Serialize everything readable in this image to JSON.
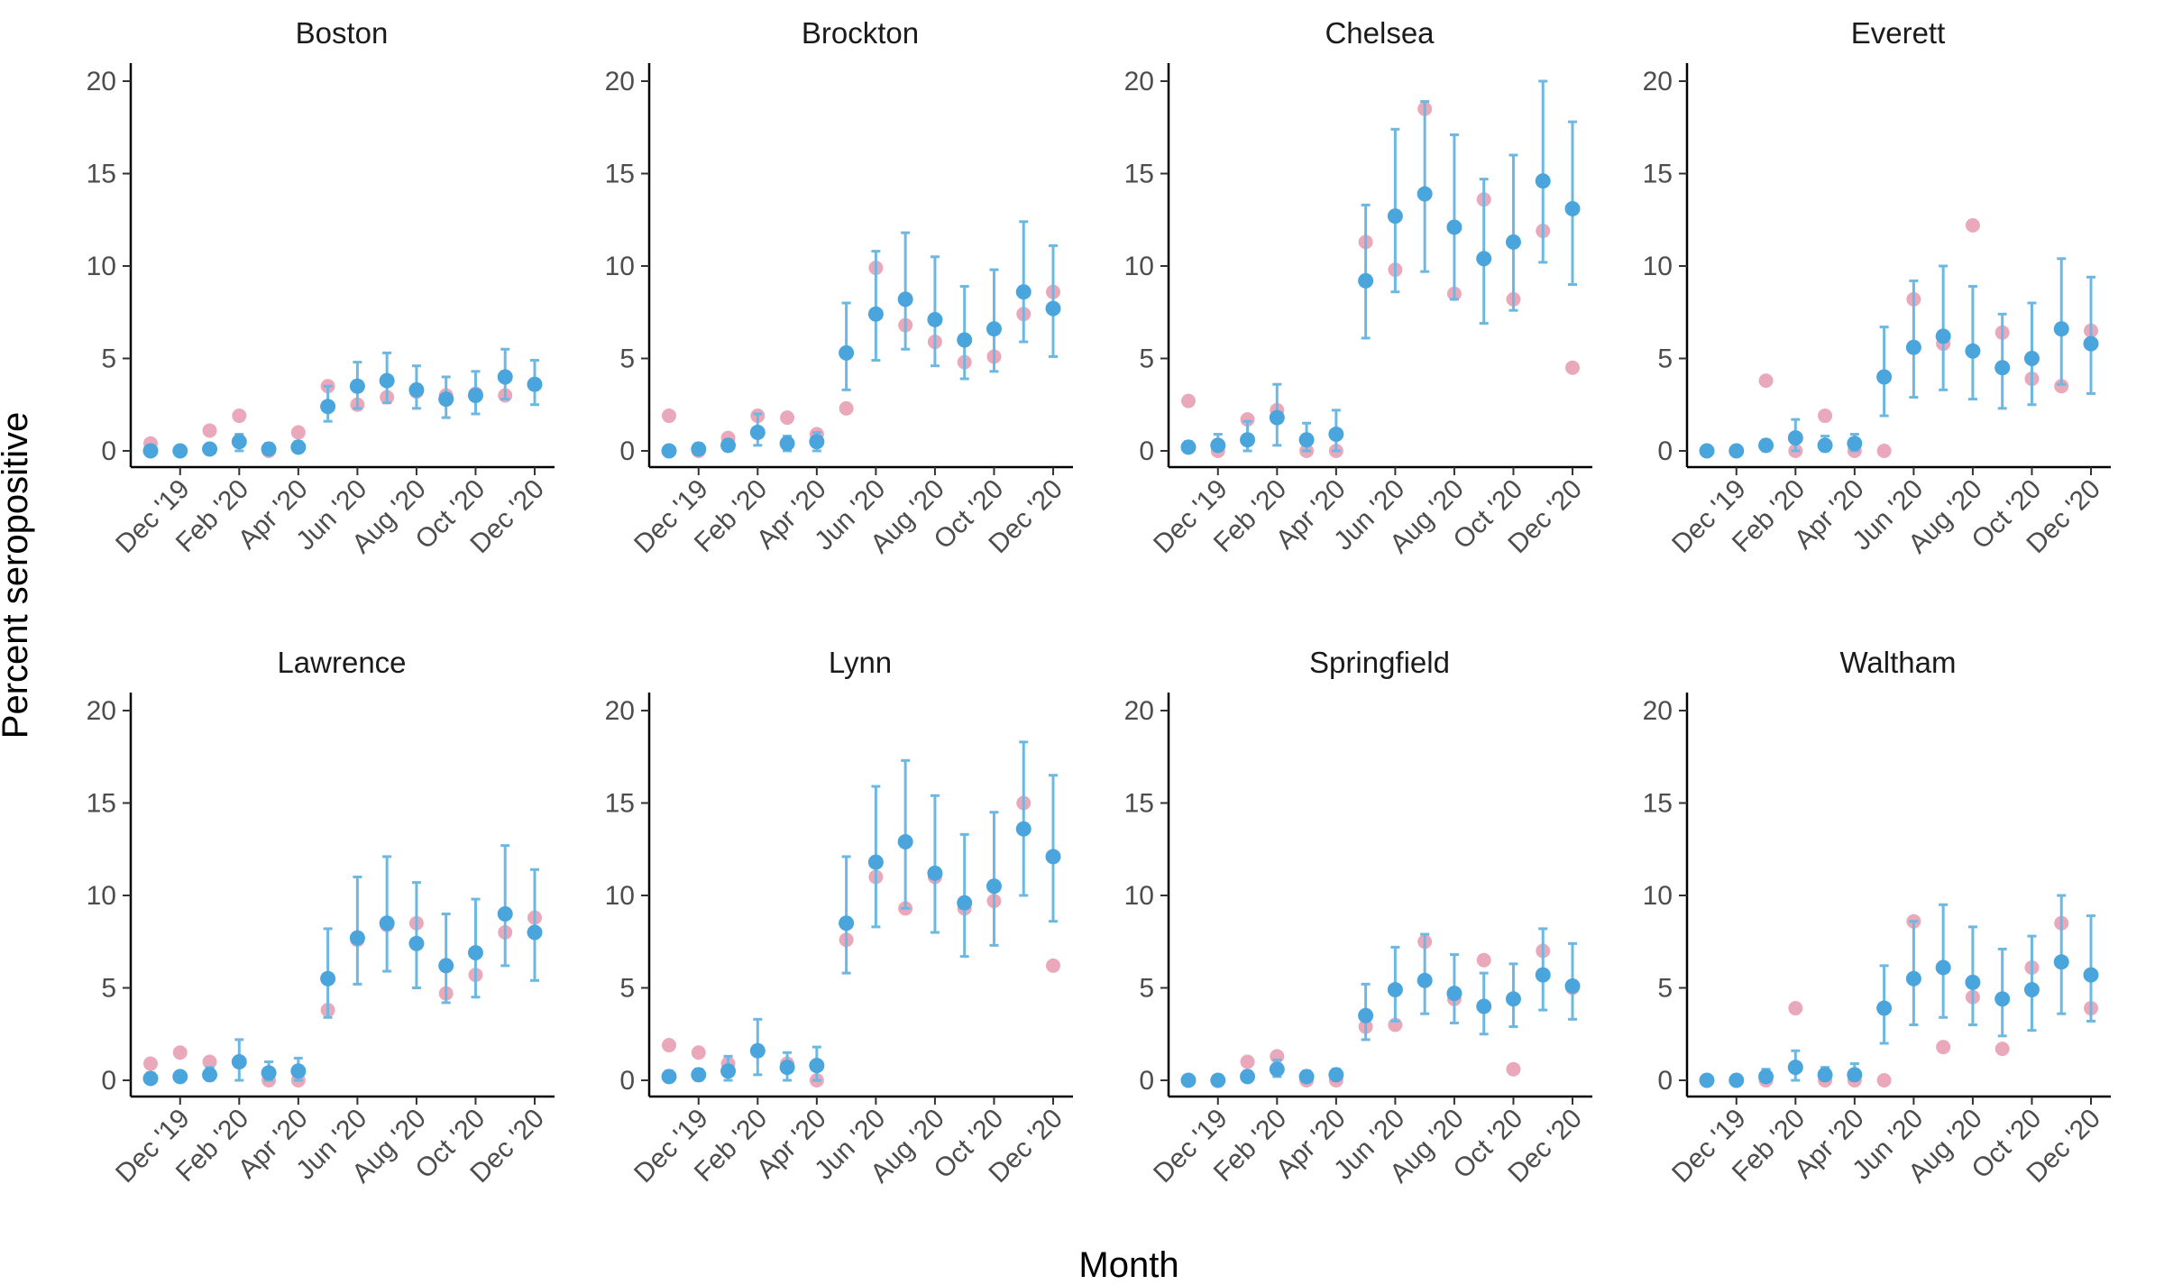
{
  "chart_data": {
    "type": "scatter",
    "xlabel": "Month",
    "ylabel": "Percent seropositive",
    "ylim": [
      0,
      20
    ],
    "y_ticks": [
      0,
      5,
      10,
      15,
      20
    ],
    "x_tick_labels": [
      "Dec '19",
      "Feb '20",
      "Apr '20",
      "Jun '20",
      "Aug '20",
      "Oct '20",
      "Dec '20"
    ],
    "months": [
      "Nov '19",
      "Dec '19",
      "Jan '20",
      "Feb '20",
      "Mar '20",
      "Apr '20",
      "May '20",
      "Jun '20",
      "Jul '20",
      "Aug '20",
      "Sep '20",
      "Oct '20",
      "Nov '20",
      "Dec '20"
    ],
    "grid": false,
    "layout": "facets 2 rows x 4 columns",
    "colors": {
      "observed": "#e8a0b4",
      "estimate": "#4aa5dc",
      "interval": "#6db8e2"
    },
    "facets": [
      {
        "title": "Boston",
        "observed": [
          0.4,
          0.0,
          1.1,
          1.9,
          0.0,
          1.0,
          3.5,
          2.5,
          2.9,
          3.2,
          3.0,
          3.1,
          3.0,
          3.6
        ],
        "estimate": [
          0.0,
          0.0,
          0.1,
          0.5,
          0.1,
          0.2,
          2.4,
          3.5,
          3.8,
          3.3,
          2.8,
          3.0,
          4.0,
          3.6
        ],
        "lower": [
          0.0,
          0.0,
          0.0,
          0.0,
          0.0,
          0.0,
          1.6,
          2.3,
          2.6,
          2.3,
          1.8,
          2.0,
          2.8,
          2.5
        ],
        "upper": [
          0.0,
          0.0,
          0.0,
          0.9,
          0.4,
          0.5,
          3.5,
          4.8,
          5.3,
          4.6,
          4.0,
          4.3,
          5.5,
          4.9
        ]
      },
      {
        "title": "Brockton",
        "observed": [
          1.9,
          0.0,
          0.7,
          1.9,
          1.8,
          0.9,
          2.3,
          9.9,
          6.8,
          5.9,
          4.8,
          5.1,
          7.4,
          8.6
        ],
        "estimate": [
          0.0,
          0.1,
          0.3,
          1.0,
          0.4,
          0.5,
          5.3,
          7.4,
          8.2,
          7.1,
          6.0,
          6.6,
          8.6,
          7.7
        ],
        "lower": [
          0.0,
          0.0,
          0.0,
          0.3,
          0.0,
          0.0,
          3.3,
          4.9,
          5.5,
          4.6,
          3.9,
          4.3,
          5.9,
          5.1
        ],
        "upper": [
          0.0,
          0.4,
          0.6,
          2.0,
          0.8,
          1.0,
          8.0,
          10.8,
          11.8,
          10.5,
          8.9,
          9.8,
          12.4,
          11.1
        ]
      },
      {
        "title": "Chelsea",
        "observed": [
          2.7,
          0.0,
          1.7,
          2.2,
          0.0,
          0.0,
          11.3,
          9.8,
          18.5,
          8.5,
          13.6,
          8.2,
          11.9,
          4.5
        ],
        "estimate": [
          0.2,
          0.3,
          0.6,
          1.8,
          0.6,
          0.9,
          9.2,
          12.7,
          13.9,
          12.1,
          10.4,
          11.3,
          14.6,
          13.1
        ],
        "lower": [
          0.0,
          0.0,
          0.0,
          0.3,
          0.0,
          0.0,
          6.1,
          8.6,
          9.7,
          8.2,
          6.9,
          7.6,
          10.2,
          9.0
        ],
        "upper": [
          0.5,
          0.9,
          1.6,
          3.6,
          1.5,
          2.2,
          13.3,
          17.4,
          18.9,
          17.1,
          14.7,
          16.0,
          20.0,
          17.8
        ]
      },
      {
        "title": "Everett",
        "observed": [
          0.0,
          0.0,
          3.8,
          0.0,
          1.9,
          0.0,
          0.0,
          8.2,
          5.8,
          12.2,
          6.4,
          3.9,
          3.5,
          6.5
        ],
        "estimate": [
          0.0,
          0.0,
          0.3,
          0.7,
          0.3,
          0.4,
          4.0,
          5.6,
          6.2,
          5.4,
          4.5,
          5.0,
          6.6,
          5.8
        ],
        "lower": [
          0.0,
          0.0,
          0.0,
          0.0,
          0.0,
          0.0,
          1.9,
          2.9,
          3.3,
          2.8,
          2.3,
          2.5,
          3.6,
          3.1
        ],
        "upper": [
          0.0,
          0.0,
          0.6,
          1.7,
          0.8,
          0.9,
          6.7,
          9.2,
          10.0,
          8.9,
          7.4,
          8.0,
          10.4,
          9.4
        ]
      },
      {
        "title": "Lawrence",
        "observed": [
          0.9,
          1.5,
          1.0,
          1.0,
          0.0,
          0.0,
          3.8,
          7.6,
          8.4,
          8.5,
          4.7,
          5.7,
          8.0,
          8.8
        ],
        "estimate": [
          0.1,
          0.2,
          0.3,
          1.0,
          0.4,
          0.5,
          5.5,
          7.7,
          8.5,
          7.4,
          6.2,
          6.9,
          9.0,
          8.0
        ],
        "lower": [
          0.0,
          0.0,
          0.0,
          0.0,
          0.0,
          0.0,
          3.4,
          5.2,
          5.9,
          5.0,
          4.2,
          4.5,
          6.2,
          5.4
        ],
        "upper": [
          0.4,
          0.4,
          0.7,
          2.2,
          1.0,
          1.2,
          8.2,
          11.0,
          12.1,
          10.7,
          9.0,
          9.8,
          12.7,
          11.4
        ]
      },
      {
        "title": "Lynn",
        "observed": [
          1.9,
          1.5,
          0.9,
          1.6,
          0.9,
          0.0,
          7.6,
          11.0,
          9.3,
          11.0,
          9.3,
          9.7,
          15.0,
          6.2
        ],
        "estimate": [
          0.2,
          0.3,
          0.5,
          1.6,
          0.7,
          0.8,
          8.5,
          11.8,
          12.9,
          11.2,
          9.6,
          10.5,
          13.6,
          12.1
        ],
        "lower": [
          0.0,
          0.0,
          0.0,
          0.3,
          0.0,
          0.0,
          5.8,
          8.3,
          9.3,
          8.0,
          6.7,
          7.3,
          10.0,
          8.6
        ],
        "upper": [
          0.5,
          0.6,
          1.3,
          3.3,
          1.5,
          1.8,
          12.1,
          15.9,
          17.3,
          15.4,
          13.3,
          14.5,
          18.3,
          16.5
        ]
      },
      {
        "title": "Springfield",
        "observed": [
          0.0,
          0.0,
          1.0,
          1.3,
          0.0,
          0.0,
          2.9,
          3.0,
          7.5,
          4.4,
          6.5,
          0.6,
          7.0,
          5.0
        ],
        "estimate": [
          0.0,
          0.0,
          0.2,
          0.6,
          0.2,
          0.3,
          3.5,
          4.9,
          5.4,
          4.7,
          4.0,
          4.4,
          5.7,
          5.1
        ],
        "lower": [
          0.0,
          0.0,
          0.0,
          0.2,
          0.0,
          0.0,
          2.2,
          3.2,
          3.6,
          3.1,
          2.5,
          2.9,
          3.8,
          3.3
        ],
        "upper": [
          0.0,
          0.0,
          0.5,
          1.1,
          0.5,
          0.6,
          5.2,
          7.2,
          7.9,
          6.8,
          5.8,
          6.3,
          8.2,
          7.4
        ]
      },
      {
        "title": "Waltham",
        "observed": [
          0.0,
          0.0,
          0.0,
          3.9,
          0.0,
          0.0,
          0.0,
          8.6,
          1.8,
          4.5,
          1.7,
          6.1,
          8.5,
          3.9
        ],
        "estimate": [
          0.0,
          0.0,
          0.2,
          0.7,
          0.3,
          0.3,
          3.9,
          5.5,
          6.1,
          5.3,
          4.4,
          4.9,
          6.4,
          5.7
        ],
        "lower": [
          0.0,
          0.0,
          0.0,
          0.0,
          0.0,
          0.0,
          2.0,
          3.0,
          3.4,
          3.0,
          2.4,
          2.7,
          3.6,
          3.2
        ],
        "upper": [
          0.0,
          0.0,
          0.6,
          1.6,
          0.7,
          0.9,
          6.2,
          8.6,
          9.5,
          8.3,
          7.1,
          7.8,
          10.0,
          8.9
        ]
      }
    ]
  }
}
